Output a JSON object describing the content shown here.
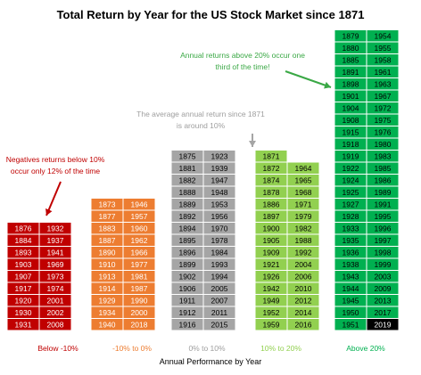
{
  "chart_data": {
    "type": "table",
    "title": "Total Return by Year for the US Stock Market since 1871",
    "xlabel": "Annual Performance by Year",
    "categories": [
      "Below -10%",
      "-10% to 0%",
      "0% to 10%",
      "10% to 20%",
      "Above 20%"
    ],
    "colors": {
      "Below -10%": "#c00000",
      "-10% to 0%": "#ed7d31",
      "0% to 10%": "#a5a5a5",
      "10% to 20%": "#92d050",
      "Above 20%": "#00b050",
      "highlight": "#000000"
    },
    "highlight_year": "2019",
    "groups": [
      {
        "category": "Below -10%",
        "years": [
          "1876",
          "1884",
          "1893",
          "1903",
          "1907",
          "1917",
          "1920",
          "1930",
          "1931",
          "1932",
          "1937",
          "1941",
          "1969",
          "1973",
          "1974",
          "2001",
          "2002",
          "2008"
        ]
      },
      {
        "category": "-10% to 0%",
        "years": [
          "1873",
          "1877",
          "1883",
          "1887",
          "1890",
          "1910",
          "1913",
          "1914",
          "1929",
          "1934",
          "1940",
          "1946",
          "1957",
          "1960",
          "1962",
          "1966",
          "1977",
          "1981",
          "1987",
          "1990",
          "2000",
          "2018"
        ]
      },
      {
        "category": "0% to 10%",
        "years": [
          "1875",
          "1881",
          "1882",
          "1888",
          "1889",
          "1892",
          "1894",
          "1895",
          "1896",
          "1899",
          "1902",
          "1906",
          "1911",
          "1912",
          "1916",
          "1923",
          "1939",
          "1947",
          "1948",
          "1953",
          "1956",
          "1970",
          "1978",
          "1984",
          "1993",
          "1994",
          "2005",
          "2007",
          "2011",
          "2015"
        ]
      },
      {
        "category": "10% to 20%",
        "years": [
          "1871",
          "1872",
          "1874",
          "1878",
          "1886",
          "1897",
          "1900",
          "1905",
          "1909",
          "1921",
          "1926",
          "1942",
          "1949",
          "1952",
          "1959",
          "1964",
          "1965",
          "1968",
          "1971",
          "1979",
          "1982",
          "1988",
          "1992",
          "2004",
          "2006",
          "2010",
          "2012",
          "2014",
          "2016"
        ]
      },
      {
        "category": "Above 20%",
        "years": [
          "1879",
          "1880",
          "1885",
          "1891",
          "1898",
          "1901",
          "1904",
          "1908",
          "1915",
          "1918",
          "1919",
          "1922",
          "1924",
          "1925",
          "1927",
          "1928",
          "1933",
          "1935",
          "1936",
          "1938",
          "1943",
          "1944",
          "1945",
          "1950",
          "1951",
          "1954",
          "1955",
          "1958",
          "1961",
          "1963",
          "1967",
          "1972",
          "1975",
          "1976",
          "1980",
          "1983",
          "1985",
          "1986",
          "1989",
          "1991",
          "1995",
          "1996",
          "1997",
          "1998",
          "1999",
          "2003",
          "2009",
          "2013",
          "2017",
          "2019"
        ]
      }
    ],
    "annotations": [
      "Negatives returns below 10% occur only 12% of the time",
      "The average annual return since 1871 is around 10%",
      "Annual returns above 20% occur one third of the time!"
    ]
  }
}
